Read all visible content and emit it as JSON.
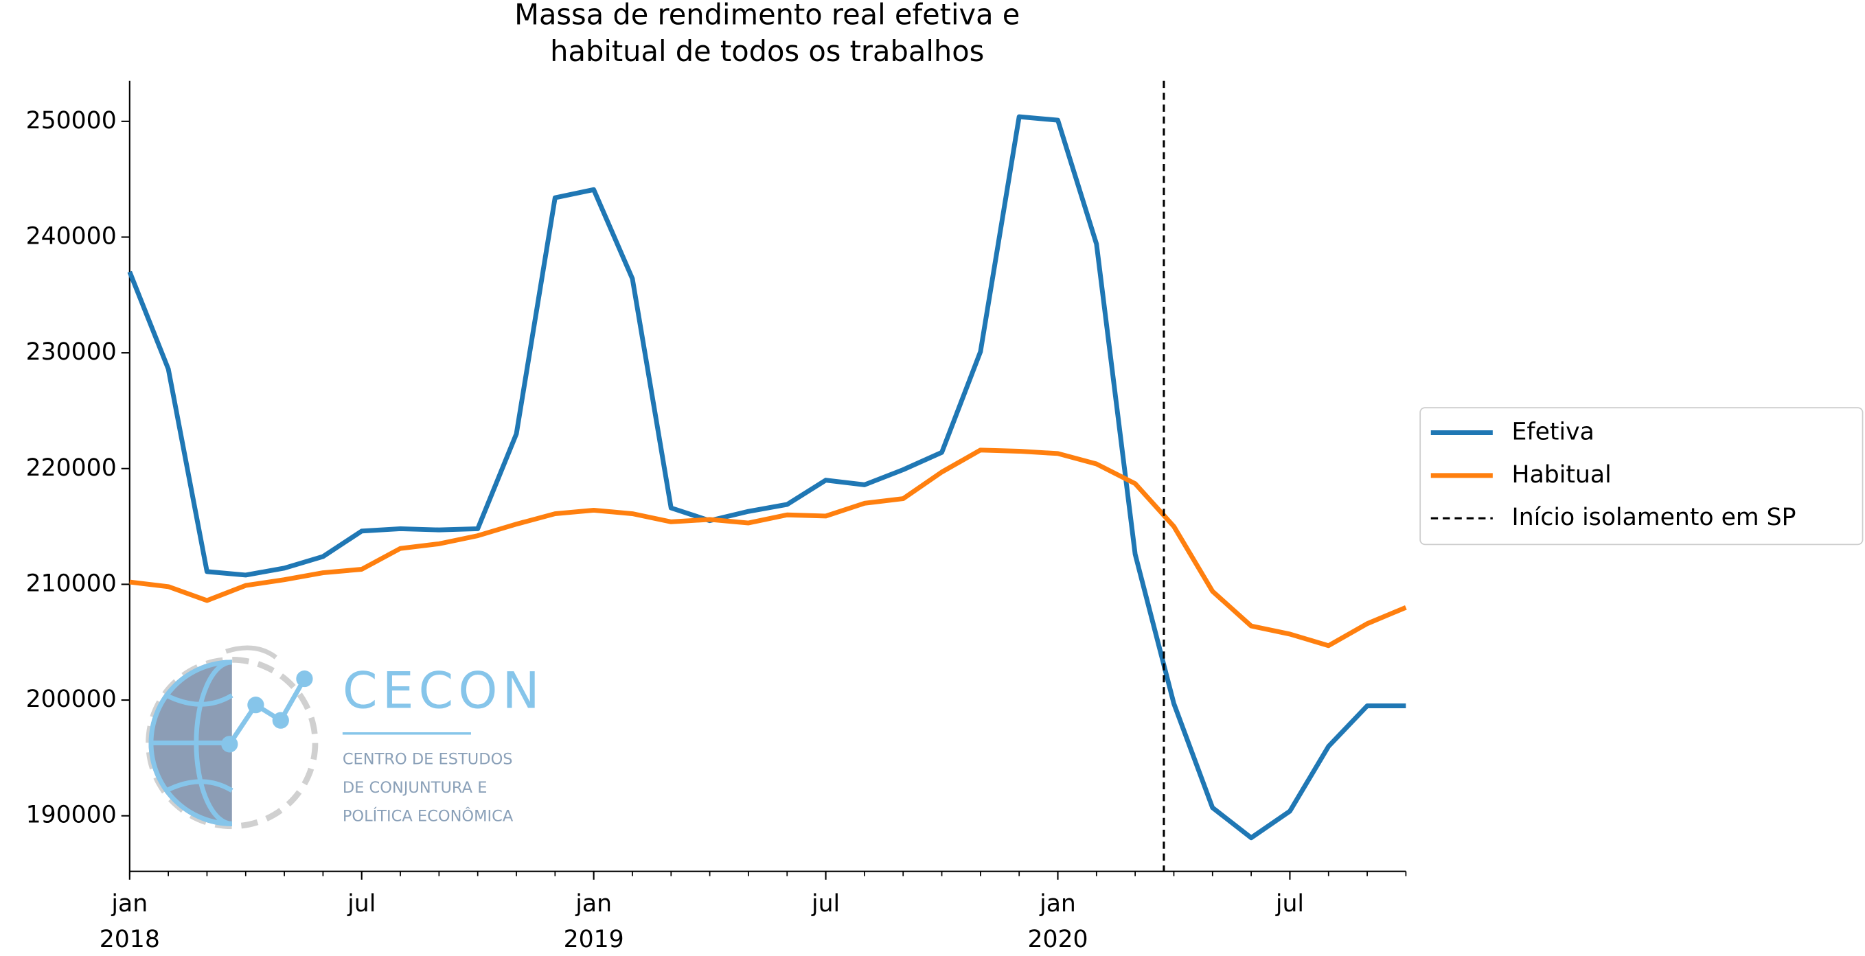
{
  "chart_data": {
    "type": "line",
    "title": "Massa de rendimento real efetiva e\nhabitual de todos os trabalhos",
    "x": [
      "2018-01",
      "2018-02",
      "2018-03",
      "2018-04",
      "2018-05",
      "2018-06",
      "2018-07",
      "2018-08",
      "2018-09",
      "2018-10",
      "2018-11",
      "2018-12",
      "2019-01",
      "2019-02",
      "2019-03",
      "2019-04",
      "2019-05",
      "2019-06",
      "2019-07",
      "2019-08",
      "2019-09",
      "2019-10",
      "2019-11",
      "2019-12",
      "2020-01",
      "2020-02",
      "2020-03",
      "2020-04",
      "2020-05",
      "2020-06",
      "2020-07",
      "2020-08",
      "2020-09",
      "2020-10"
    ],
    "series": [
      {
        "name": "Efetiva",
        "color": "#1f77b4",
        "values": [
          237000,
          228600,
          211100,
          210800,
          211400,
          212400,
          214600,
          214800,
          214700,
          214800,
          223000,
          243400,
          244100,
          236400,
          216600,
          215500,
          216300,
          216900,
          219000,
          218600,
          219900,
          221400,
          230100,
          250400,
          250100,
          239400,
          212600,
          199700,
          190700,
          188100,
          190400,
          196000,
          199500,
          199500
        ]
      },
      {
        "name": "Habitual",
        "color": "#ff7f0e",
        "values": [
          210200,
          209800,
          208600,
          209900,
          210400,
          211000,
          211300,
          213100,
          213500,
          214200,
          215200,
          216100,
          216400,
          216100,
          215400,
          215600,
          215300,
          216000,
          215900,
          217000,
          217400,
          219700,
          221600,
          221500,
          221300,
          220400,
          218700,
          215000,
          209400,
          206400,
          205700,
          204700,
          206600,
          208000
        ]
      }
    ],
    "vlines": [
      {
        "x": "2020-03-24",
        "label": "Início isolamento em SP",
        "color": "#000000"
      }
    ],
    "xlim": [
      "2018-01",
      "2020-10"
    ],
    "xticks": [
      {
        "value": "2018-01",
        "label": "jan",
        "year": "2018"
      },
      {
        "value": "2018-07",
        "label": "jul"
      },
      {
        "value": "2019-01",
        "label": "jan",
        "year": "2019"
      },
      {
        "value": "2019-07",
        "label": "jul"
      },
      {
        "value": "2020-01",
        "label": "jan",
        "year": "2020"
      },
      {
        "value": "2020-07",
        "label": "jul"
      }
    ],
    "ylim": [
      185200,
      253500
    ],
    "yticks": [
      190000,
      200000,
      210000,
      220000,
      230000,
      240000,
      250000
    ],
    "grid": false,
    "legend": "right"
  },
  "logo": {
    "name": "CECON",
    "lines": [
      "CENTRO DE ESTUDOS",
      "DE CONJUNTURA E",
      "POLÍTICA ECONÔMICA"
    ]
  }
}
